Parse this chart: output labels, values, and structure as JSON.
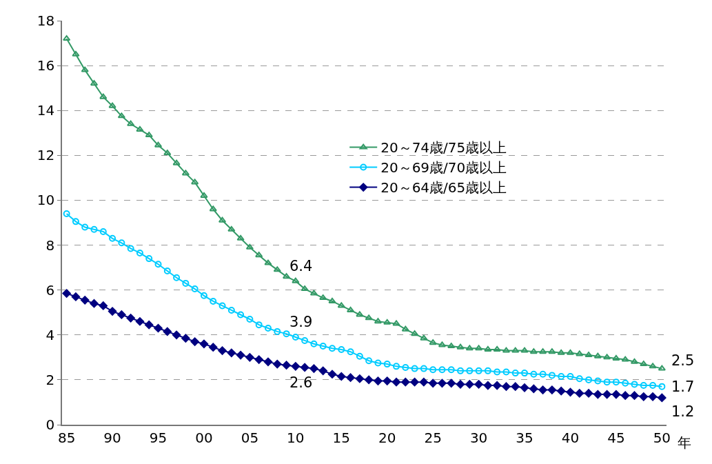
{
  "chart_data": {
    "type": "line",
    "x": [
      1985,
      1986,
      1987,
      1988,
      1989,
      1990,
      1991,
      1992,
      1993,
      1994,
      1995,
      1996,
      1997,
      1998,
      1999,
      2000,
      2001,
      2002,
      2003,
      2004,
      2005,
      2006,
      2007,
      2008,
      2009,
      2010,
      2011,
      2012,
      2013,
      2014,
      2015,
      2016,
      2017,
      2018,
      2019,
      2020,
      2021,
      2022,
      2023,
      2024,
      2025,
      2026,
      2027,
      2028,
      2029,
      2030,
      2031,
      2032,
      2033,
      2034,
      2035,
      2036,
      2037,
      2038,
      2039,
      2040,
      2041,
      2042,
      2043,
      2044,
      2045,
      2046,
      2047,
      2048,
      2049,
      2050
    ],
    "series": [
      {
        "name": "20～74歳/75歳以上",
        "color": "#339966",
        "marker": "triangle",
        "values": [
          17.2,
          16.5,
          15.8,
          15.2,
          14.6,
          14.2,
          13.75,
          13.4,
          13.15,
          12.9,
          12.45,
          12.1,
          11.65,
          11.2,
          10.8,
          10.2,
          9.6,
          9.1,
          8.7,
          8.3,
          7.9,
          7.55,
          7.2,
          6.9,
          6.6,
          6.4,
          6.05,
          5.85,
          5.65,
          5.5,
          5.3,
          5.1,
          4.9,
          4.75,
          4.6,
          4.55,
          4.5,
          4.25,
          4.05,
          3.85,
          3.65,
          3.55,
          3.5,
          3.45,
          3.4,
          3.4,
          3.35,
          3.35,
          3.3,
          3.3,
          3.3,
          3.25,
          3.25,
          3.25,
          3.2,
          3.2,
          3.15,
          3.1,
          3.05,
          3.0,
          2.95,
          2.9,
          2.8,
          2.7,
          2.6,
          2.5
        ],
        "value_labels": [
          null,
          null,
          null,
          null,
          null,
          null,
          null,
          null,
          null,
          null,
          null,
          null,
          null,
          null,
          null,
          null,
          null,
          null,
          null,
          null,
          null,
          null,
          null,
          null,
          null,
          "6.4",
          null,
          null,
          null,
          null,
          null,
          null,
          null,
          null,
          null,
          null,
          null,
          null,
          null,
          null,
          null,
          null,
          null,
          null,
          null,
          null,
          null,
          null,
          null,
          null,
          null,
          null,
          null,
          null,
          null,
          null,
          null,
          null,
          null,
          null,
          null,
          null,
          null,
          null,
          null,
          "2.5"
        ]
      },
      {
        "name": "20～69歳/70歳以上",
        "color": "#00ccff",
        "marker": "circle",
        "values": [
          9.4,
          9.05,
          8.8,
          8.7,
          8.6,
          8.3,
          8.1,
          7.85,
          7.65,
          7.4,
          7.15,
          6.85,
          6.55,
          6.3,
          6.05,
          5.75,
          5.5,
          5.3,
          5.1,
          4.9,
          4.7,
          4.45,
          4.3,
          4.15,
          4.05,
          3.9,
          3.75,
          3.6,
          3.5,
          3.4,
          3.35,
          3.25,
          3.05,
          2.85,
          2.75,
          2.7,
          2.6,
          2.55,
          2.5,
          2.5,
          2.45,
          2.45,
          2.45,
          2.4,
          2.4,
          2.4,
          2.4,
          2.35,
          2.35,
          2.3,
          2.3,
          2.25,
          2.25,
          2.2,
          2.15,
          2.15,
          2.05,
          2.0,
          1.95,
          1.9,
          1.9,
          1.85,
          1.8,
          1.75,
          1.75,
          1.7
        ],
        "value_labels": [
          null,
          null,
          null,
          null,
          null,
          null,
          null,
          null,
          null,
          null,
          null,
          null,
          null,
          null,
          null,
          null,
          null,
          null,
          null,
          null,
          null,
          null,
          null,
          null,
          null,
          "3.9",
          null,
          null,
          null,
          null,
          null,
          null,
          null,
          null,
          null,
          null,
          null,
          null,
          null,
          null,
          null,
          null,
          null,
          null,
          null,
          null,
          null,
          null,
          null,
          null,
          null,
          null,
          null,
          null,
          null,
          null,
          null,
          null,
          null,
          null,
          null,
          null,
          null,
          null,
          null,
          "1.7"
        ]
      },
      {
        "name": "20～64歳/65歳以上",
        "color": "#000080",
        "marker": "diamond",
        "values": [
          5.85,
          5.7,
          5.55,
          5.4,
          5.3,
          5.05,
          4.9,
          4.75,
          4.6,
          4.45,
          4.3,
          4.15,
          4.0,
          3.85,
          3.7,
          3.6,
          3.45,
          3.3,
          3.2,
          3.1,
          3.0,
          2.9,
          2.8,
          2.7,
          2.65,
          2.6,
          2.55,
          2.5,
          2.4,
          2.25,
          2.15,
          2.1,
          2.05,
          2.0,
          1.95,
          1.95,
          1.9,
          1.9,
          1.9,
          1.9,
          1.85,
          1.85,
          1.85,
          1.8,
          1.8,
          1.8,
          1.75,
          1.75,
          1.7,
          1.7,
          1.65,
          1.6,
          1.55,
          1.55,
          1.5,
          1.45,
          1.4,
          1.4,
          1.35,
          1.35,
          1.35,
          1.3,
          1.3,
          1.25,
          1.25,
          1.2
        ],
        "value_labels": [
          null,
          null,
          null,
          null,
          null,
          null,
          null,
          null,
          null,
          null,
          null,
          null,
          null,
          null,
          null,
          null,
          null,
          null,
          null,
          null,
          null,
          null,
          null,
          null,
          null,
          "2.6",
          null,
          null,
          null,
          null,
          null,
          null,
          null,
          null,
          null,
          null,
          null,
          null,
          null,
          null,
          null,
          null,
          null,
          null,
          null,
          null,
          null,
          null,
          null,
          null,
          null,
          null,
          null,
          null,
          null,
          null,
          null,
          null,
          null,
          null,
          null,
          null,
          null,
          null,
          null,
          "1.2"
        ]
      }
    ],
    "xlim": [
      1984.5,
      2050.5
    ],
    "xticks": [
      {
        "value": 1985,
        "label": "85"
      },
      {
        "value": 1990,
        "label": "90"
      },
      {
        "value": 1995,
        "label": "95"
      },
      {
        "value": 2000,
        "label": "00"
      },
      {
        "value": 2005,
        "label": "05"
      },
      {
        "value": 2010,
        "label": "10"
      },
      {
        "value": 2015,
        "label": "15"
      },
      {
        "value": 2020,
        "label": "20"
      },
      {
        "value": 2025,
        "label": "25"
      },
      {
        "value": 2030,
        "label": "30"
      },
      {
        "value": 2035,
        "label": "35"
      },
      {
        "value": 2040,
        "label": "40"
      },
      {
        "value": 2045,
        "label": "45"
      },
      {
        "value": 2050,
        "label": "50"
      }
    ],
    "xlabel": "年",
    "ylim": [
      0,
      18
    ],
    "yticks": [
      0,
      2,
      4,
      6,
      8,
      10,
      12,
      14,
      16,
      18
    ],
    "grid": "y",
    "legend": "center"
  }
}
